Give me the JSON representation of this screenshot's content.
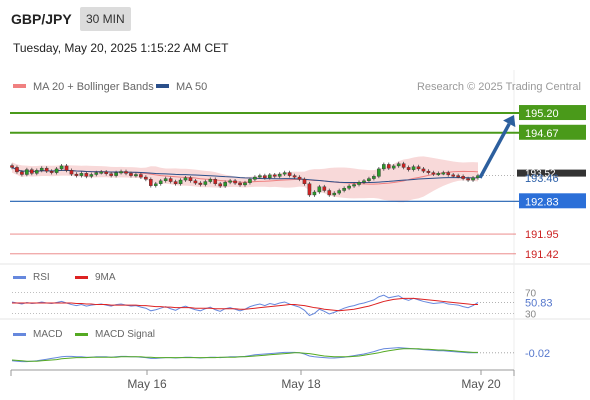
{
  "header": {
    "symbol": "GBP/JPY",
    "timeframe": "30 MIN",
    "timestamp": "Tuesday, May 20, 2025 1:15:22 AM CET"
  },
  "colors": {
    "resistance": "#4a9a1a",
    "pivot": "#1f5fb0",
    "support": "#e04545",
    "bollinger": "#f6cccc",
    "ma20": "#f08080",
    "ma50": "#2a4f8a",
    "rsi": "#6688dd",
    "rsi_ma": "#dd2222",
    "macd": "#6688dd",
    "macd_signal": "#55aa22",
    "arrow": "#2c5f9e",
    "candle_up": "#2b9a2b",
    "candle_down": "#cc2222"
  },
  "chart_data": [
    {
      "type": "candlestick",
      "legend": [
        {
          "label": "MA 20 + Bollinger Bands",
          "color": "#f08080"
        },
        {
          "label": "MA 50",
          "color": "#2a4f8a"
        }
      ],
      "legend_placement": "top-left",
      "credit": "Research © 2025 Trading Central",
      "ylim": [
        191.2,
        195.55
      ],
      "levels": [
        {
          "value": 195.2,
          "label": "195.20",
          "kind": "resistance"
        },
        {
          "value": 194.67,
          "label": "194.67",
          "kind": "resistance"
        },
        {
          "value": 193.52,
          "label": "193.52",
          "kind": "last"
        },
        {
          "value": 193.46,
          "label": "193.46",
          "kind": "pivot-text"
        },
        {
          "value": 192.83,
          "label": "192.83",
          "kind": "pivot"
        },
        {
          "value": 191.95,
          "label": "191.95",
          "kind": "support"
        },
        {
          "value": 191.42,
          "label": "191.42",
          "kind": "support"
        }
      ],
      "price_series": [
        193.74,
        193.62,
        193.55,
        193.68,
        193.58,
        193.66,
        193.72,
        193.64,
        193.6,
        193.7,
        193.78,
        193.66,
        193.56,
        193.52,
        193.58,
        193.5,
        193.55,
        193.6,
        193.62,
        193.57,
        193.52,
        193.6,
        193.63,
        193.58,
        193.52,
        193.55,
        193.48,
        193.42,
        193.25,
        193.3,
        193.38,
        193.44,
        193.36,
        193.3,
        193.4,
        193.46,
        193.38,
        193.32,
        193.28,
        193.36,
        193.42,
        193.3,
        193.24,
        193.34,
        193.38,
        193.32,
        193.27,
        193.33,
        193.42,
        193.48,
        193.52,
        193.46,
        193.54,
        193.5,
        193.56,
        193.6,
        193.52,
        193.48,
        193.42,
        193.3,
        193.0,
        193.08,
        193.22,
        193.12,
        193.0,
        193.05,
        193.12,
        193.18,
        193.24,
        193.28,
        193.34,
        193.38,
        193.44,
        193.5,
        193.7,
        193.82,
        193.72,
        193.78,
        193.84,
        193.74,
        193.68,
        193.76,
        193.7,
        193.64,
        193.6,
        193.56,
        193.58,
        193.6,
        193.54,
        193.52,
        193.5,
        193.44,
        193.4,
        193.46,
        193.52
      ],
      "projection": {
        "from": 193.46,
        "to": 195.2
      },
      "x_ticks": [
        "May 16",
        "May 18",
        "May 20"
      ]
    },
    {
      "type": "line",
      "legend": [
        {
          "label": "RSI",
          "color": "#6688dd"
        },
        {
          "label": "9MA",
          "color": "#dd2222"
        }
      ],
      "ylim": [
        25,
        75
      ],
      "levels": [
        {
          "value": 70,
          "label": "70"
        },
        {
          "value": 30,
          "label": "30"
        }
      ],
      "value_label": "50.83",
      "series": [
        {
          "name": "RSI",
          "values": [
            52,
            50,
            48,
            51,
            49,
            50,
            52,
            50,
            49,
            51,
            53,
            50,
            47,
            45,
            47,
            44,
            46,
            47,
            48,
            46,
            44,
            47,
            48,
            46,
            44,
            45,
            42,
            40,
            35,
            37,
            40,
            43,
            39,
            36,
            41,
            44,
            40,
            37,
            35,
            39,
            42,
            37,
            34,
            39,
            41,
            38,
            35,
            38,
            43,
            46,
            48,
            45,
            49,
            47,
            50,
            52,
            48,
            45,
            42,
            36,
            26,
            30,
            38,
            34,
            29,
            32,
            36,
            40,
            43,
            45,
            48,
            50,
            53,
            56,
            62,
            65,
            60,
            62,
            64,
            58,
            55,
            59,
            56,
            53,
            51,
            49,
            50,
            51,
            48,
            47,
            46,
            43,
            41,
            45,
            51
          ]
        },
        {
          "name": "9MA",
          "values": [
            50,
            50,
            50,
            50,
            50,
            50,
            50,
            50,
            50,
            50,
            50,
            50,
            50,
            49,
            49,
            48,
            48,
            47,
            47,
            47,
            46,
            46,
            46,
            46,
            46,
            46,
            45,
            45,
            44,
            43,
            43,
            42,
            42,
            41,
            41,
            41,
            41,
            40,
            40,
            40,
            40,
            39,
            39,
            39,
            39,
            39,
            38,
            38,
            39,
            40,
            41,
            42,
            43,
            44,
            45,
            46,
            47,
            47,
            46,
            45,
            43,
            41,
            40,
            38,
            37,
            36,
            35,
            36,
            37,
            38,
            40,
            42,
            44,
            47,
            50,
            53,
            55,
            57,
            58,
            59,
            59,
            59,
            58,
            57,
            56,
            55,
            54,
            53,
            52,
            51,
            50,
            49,
            48,
            47,
            47
          ]
        }
      ]
    },
    {
      "type": "line",
      "legend": [
        {
          "label": "MACD",
          "color": "#6688dd"
        },
        {
          "label": "MACD Signal",
          "color": "#55aa22"
        }
      ],
      "ylim": [
        -0.45,
        0.3
      ],
      "value_label": "-0.02",
      "series": [
        {
          "name": "MACD",
          "values": [
            -0.22,
            -0.23,
            -0.24,
            -0.24,
            -0.23,
            -0.22,
            -0.2,
            -0.18,
            -0.16,
            -0.14,
            -0.12,
            -0.11,
            -0.11,
            -0.12,
            -0.12,
            -0.13,
            -0.13,
            -0.12,
            -0.12,
            -0.12,
            -0.13,
            -0.12,
            -0.11,
            -0.11,
            -0.12,
            -0.12,
            -0.13,
            -0.14,
            -0.16,
            -0.16,
            -0.15,
            -0.14,
            -0.14,
            -0.15,
            -0.14,
            -0.13,
            -0.13,
            -0.14,
            -0.15,
            -0.14,
            -0.13,
            -0.13,
            -0.14,
            -0.13,
            -0.12,
            -0.12,
            -0.12,
            -0.11,
            -0.09,
            -0.07,
            -0.06,
            -0.05,
            -0.04,
            -0.03,
            -0.02,
            -0.01,
            -0.01,
            -0.01,
            -0.02,
            -0.05,
            -0.1,
            -0.12,
            -0.13,
            -0.14,
            -0.15,
            -0.15,
            -0.14,
            -0.13,
            -0.11,
            -0.09,
            -0.07,
            -0.05,
            -0.02,
            0.01,
            0.05,
            0.08,
            0.09,
            0.1,
            0.11,
            0.1,
            0.09,
            0.08,
            0.07,
            0.06,
            0.05,
            0.04,
            0.03,
            0.03,
            0.02,
            0.01,
            0.0,
            -0.01,
            -0.02,
            -0.02,
            -0.02
          ]
        },
        {
          "name": "MACD Signal",
          "values": [
            -0.2,
            -0.21,
            -0.22,
            -0.23,
            -0.23,
            -0.23,
            -0.22,
            -0.21,
            -0.2,
            -0.19,
            -0.17,
            -0.16,
            -0.15,
            -0.14,
            -0.14,
            -0.14,
            -0.13,
            -0.13,
            -0.13,
            -0.13,
            -0.13,
            -0.13,
            -0.12,
            -0.12,
            -0.12,
            -0.12,
            -0.12,
            -0.13,
            -0.13,
            -0.14,
            -0.14,
            -0.14,
            -0.14,
            -0.14,
            -0.14,
            -0.14,
            -0.14,
            -0.14,
            -0.14,
            -0.14,
            -0.14,
            -0.14,
            -0.13,
            -0.13,
            -0.13,
            -0.13,
            -0.12,
            -0.12,
            -0.11,
            -0.1,
            -0.09,
            -0.08,
            -0.07,
            -0.06,
            -0.05,
            -0.04,
            -0.03,
            -0.02,
            -0.02,
            -0.03,
            -0.04,
            -0.06,
            -0.08,
            -0.1,
            -0.11,
            -0.12,
            -0.12,
            -0.12,
            -0.12,
            -0.11,
            -0.1,
            -0.08,
            -0.06,
            -0.04,
            -0.02,
            0.01,
            0.03,
            0.05,
            0.07,
            0.08,
            0.08,
            0.08,
            0.08,
            0.07,
            0.07,
            0.06,
            0.05,
            0.05,
            0.04,
            0.03,
            0.02,
            0.01,
            0.0,
            -0.01,
            -0.01
          ]
        }
      ]
    }
  ]
}
